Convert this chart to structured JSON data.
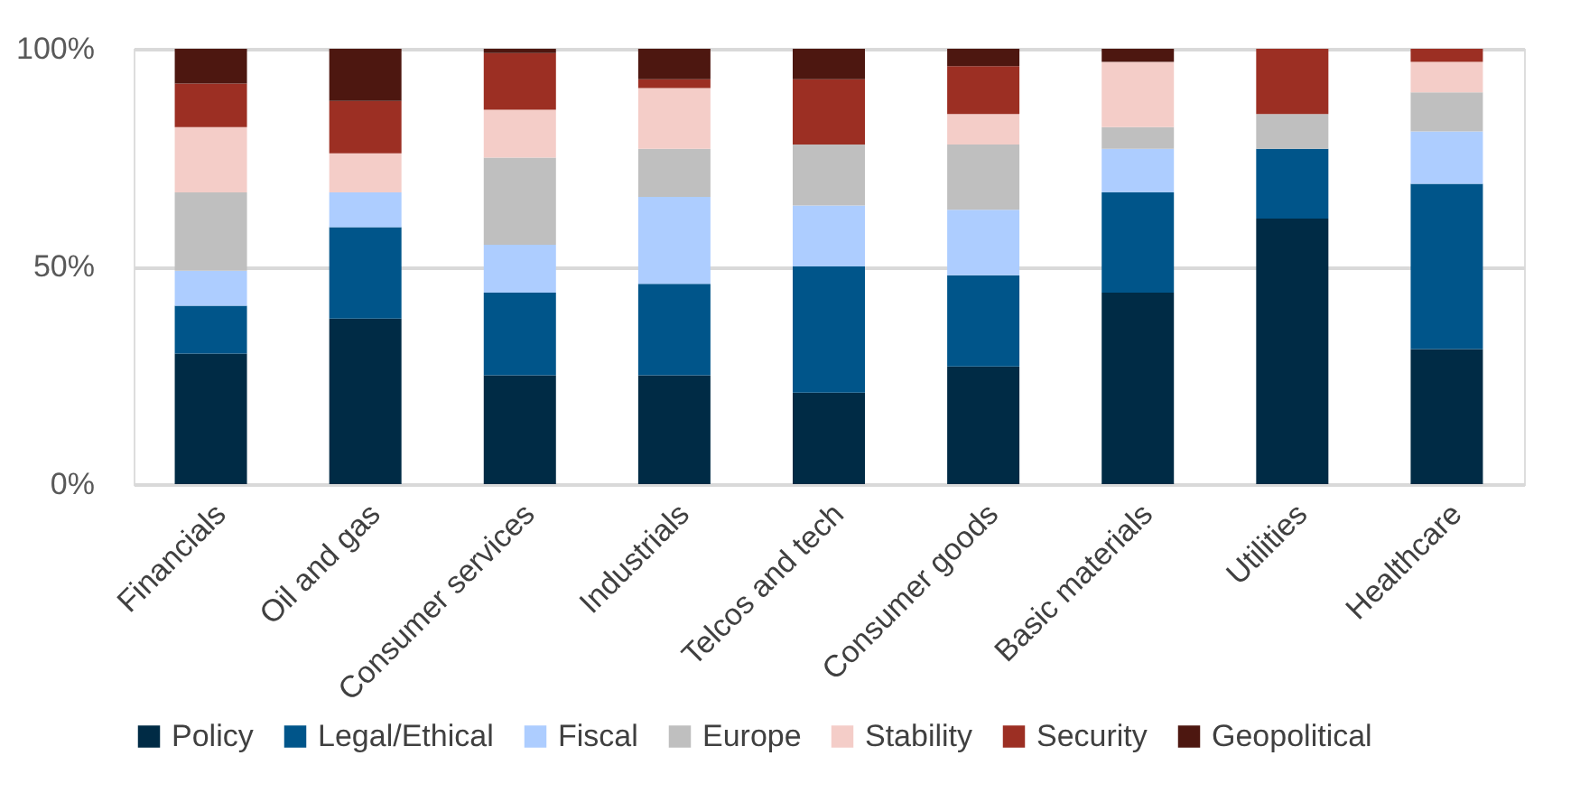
{
  "chart_data": {
    "type": "bar",
    "stacked": true,
    "categories": [
      "Financials",
      "Oil and gas",
      "Consumer services",
      "Industrials",
      "Telcos and tech",
      "Consumer goods",
      "Basic materials",
      "Utilities",
      "Healthcare"
    ],
    "series": [
      {
        "name": "Policy",
        "color": "#002b45",
        "values": [
          30,
          38,
          25,
          25,
          21,
          27,
          44,
          61,
          31
        ]
      },
      {
        "name": "Legal/Ethical",
        "color": "#00558a",
        "values": [
          11,
          21,
          19,
          21,
          29,
          21,
          23,
          16,
          38
        ]
      },
      {
        "name": "Fiscal",
        "color": "#adcdff",
        "values": [
          8,
          8,
          11,
          20,
          14,
          15,
          10,
          0,
          12
        ]
      },
      {
        "name": "Europe",
        "color": "#bfbfbf",
        "values": [
          18,
          0,
          20,
          11,
          14,
          15,
          5,
          8,
          9
        ]
      },
      {
        "name": "Stability",
        "color": "#f4cdc8",
        "values": [
          15,
          9,
          11,
          14,
          0,
          7,
          15,
          0,
          7
        ]
      },
      {
        "name": "Security",
        "color": "#9c2f23",
        "values": [
          10,
          12,
          13,
          2,
          15,
          11,
          0,
          15,
          3
        ]
      },
      {
        "name": "Geopolitical",
        "color": "#4d1710",
        "values": [
          8,
          12,
          1,
          7,
          7,
          4,
          3,
          0,
          0
        ]
      }
    ],
    "ylim": [
      0,
      100
    ],
    "yticks": [
      {
        "value": 0,
        "label": "0%"
      },
      {
        "value": 50,
        "label": "50%"
      },
      {
        "value": 100,
        "label": "100%"
      }
    ],
    "grid": "y",
    "legend": "bottom"
  }
}
